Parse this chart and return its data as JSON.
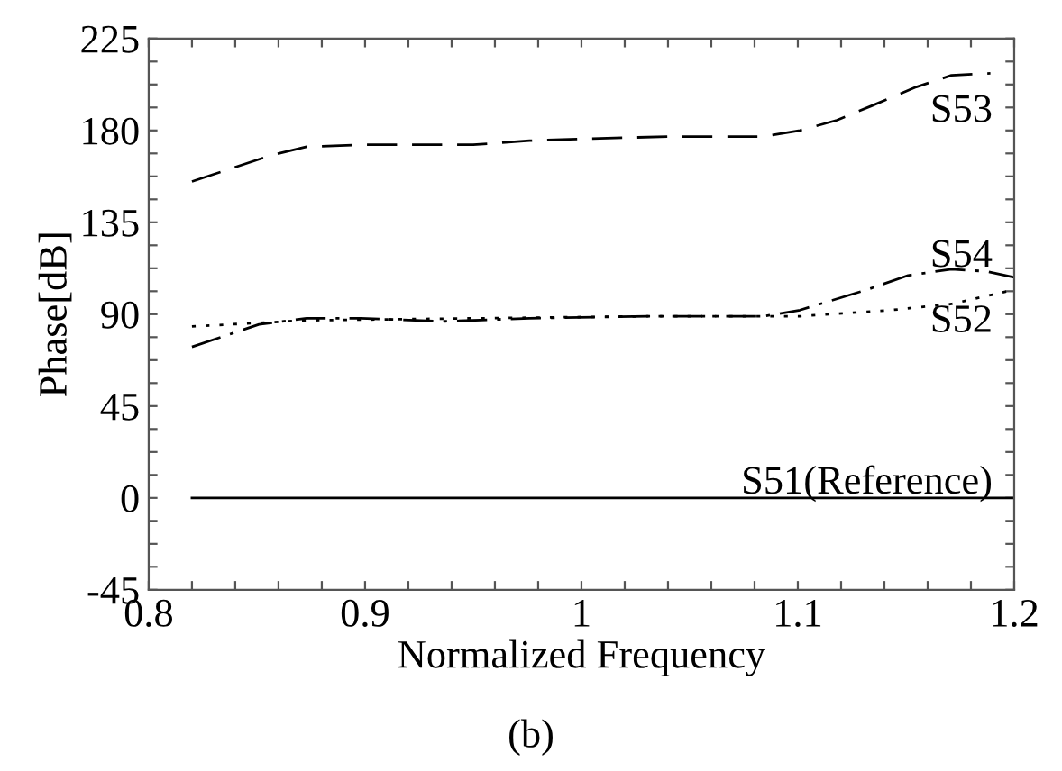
{
  "chart_data": {
    "type": "line",
    "xlabel": "Normalized Frequency",
    "ylabel": "Phase[dB]",
    "annotations": [
      "(b)"
    ],
    "xlim": [
      0.8,
      1.2
    ],
    "ylim": [
      -45,
      225
    ],
    "xticks": [
      0.8,
      {
        "value": 0.82,
        "label": null
      },
      {
        "value": 0.84,
        "label": null
      },
      {
        "value": 0.86,
        "label": null
      },
      {
        "value": 0.88,
        "label": null
      },
      0.9,
      {
        "value": 0.92,
        "label": null
      },
      {
        "value": 0.94,
        "label": null
      },
      {
        "value": 0.96,
        "label": null
      },
      {
        "value": 0.98,
        "label": null
      },
      1,
      {
        "value": 1.02,
        "label": null
      },
      {
        "value": 1.04,
        "label": null
      },
      {
        "value": 1.06,
        "label": null
      },
      {
        "value": 1.08,
        "label": null
      },
      1.1,
      {
        "value": 1.12,
        "label": null
      },
      {
        "value": 1.14,
        "label": null
      },
      {
        "value": 1.16,
        "label": null
      },
      {
        "value": 1.18,
        "label": null
      },
      1.2
    ],
    "yticks": [
      -45,
      {
        "value": -33.75,
        "label": null
      },
      {
        "value": -22.5,
        "label": null
      },
      {
        "value": -11.25,
        "label": null
      },
      0,
      {
        "value": 11.25,
        "label": null
      },
      {
        "value": 22.5,
        "label": null
      },
      {
        "value": 33.75,
        "label": null
      },
      45,
      {
        "value": 56.25,
        "label": null
      },
      {
        "value": 67.5,
        "label": null
      },
      {
        "value": 78.75,
        "label": null
      },
      90,
      {
        "value": 101.25,
        "label": null
      },
      {
        "value": 112.5,
        "label": null
      },
      {
        "value": 123.75,
        "label": null
      },
      135,
      {
        "value": 146.25,
        "label": null
      },
      {
        "value": 157.5,
        "label": null
      },
      {
        "value": 168.75,
        "label": null
      },
      180,
      {
        "value": 191.25,
        "label": null
      },
      {
        "value": 202.5,
        "label": null
      },
      {
        "value": 213.75,
        "label": null
      },
      225
    ],
    "grid": false,
    "legend": false,
    "marker": "none",
    "series": [
      {
        "name": "S53",
        "color": "#000000",
        "line_style": "dashed",
        "x": [
          0.82,
          0.857,
          0.873,
          0.9,
          0.95,
          0.976,
          1.004,
          1.04,
          1.084,
          1.101,
          1.118,
          1.134,
          1.154,
          1.171,
          1.189
        ],
        "values": [
          155,
          168,
          172,
          173,
          173,
          175,
          176,
          177,
          177,
          180,
          185,
          192,
          201,
          207,
          208
        ]
      },
      {
        "name": "S54",
        "color": "#000000",
        "line_style": "dashdot",
        "x": [
          0.82,
          0.851,
          0.873,
          0.898,
          0.937,
          0.976,
          1.032,
          1.084,
          1.101,
          1.132,
          1.151,
          1.171,
          1.187,
          1.2
        ],
        "values": [
          74,
          85,
          88,
          88,
          86.5,
          88,
          89,
          89,
          92,
          102,
          109,
          112,
          111,
          108
        ]
      },
      {
        "name": "S52",
        "color": "#000000",
        "line_style": "dotted",
        "x": [
          0.82,
          0.873,
          1.032,
          1.101,
          1.143,
          1.171,
          1.2
        ],
        "values": [
          84,
          87,
          89,
          89,
          92,
          95,
          102
        ]
      },
      {
        "name": "S51(Reference)",
        "color": "#000000",
        "line_style": "solid",
        "x": [
          0.82,
          1.2
        ],
        "values": [
          0,
          0
        ]
      }
    ]
  }
}
